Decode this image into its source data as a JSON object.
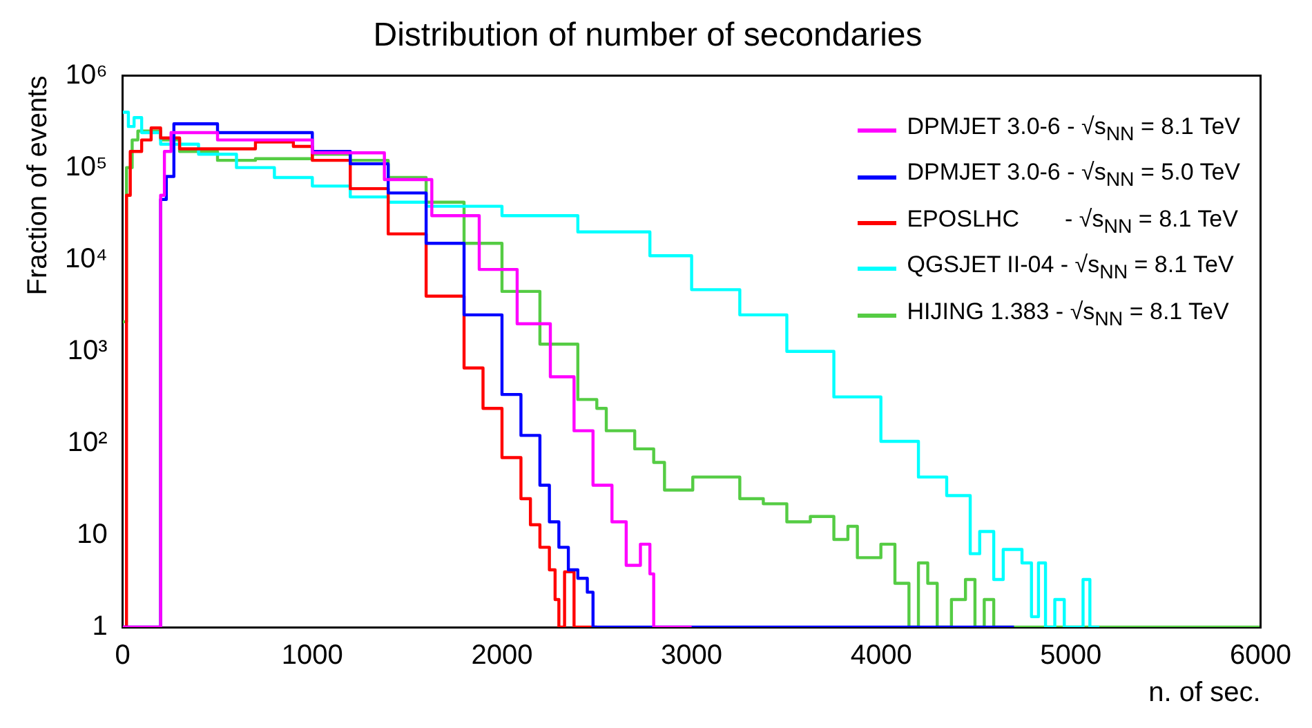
{
  "chart_data": {
    "type": "step",
    "title": "Distribution of number of secondaries",
    "xlabel": "n. of sec.",
    "ylabel": "Fraction of events",
    "log": true,
    "legend": "top right",
    "grid": false,
    "xlim": [
      0,
      6000
    ],
    "xticks": [
      0,
      1000,
      2000,
      3000,
      4000,
      5000,
      6000
    ],
    "ylim": [
      1,
      1000000
    ],
    "yticks": [
      1,
      10,
      {
        "value": 100,
        "label": "10²"
      },
      {
        "value": 1000,
        "label": "10³"
      },
      {
        "value": 10000,
        "label": "10⁴"
      },
      {
        "value": 100000,
        "label": "10⁵"
      },
      {
        "value": 1000000,
        "label": "10⁶"
      }
    ],
    "series": [
      {
        "name": "DPMJET 3.0-6 - √s$_{NN}$ = 8.1 TeV",
        "color": "#ff00ff",
        "x": [
          0,
          200,
          220,
          255,
          500,
          1000,
          1380,
          1630,
          1880,
          2080,
          2255,
          2380,
          2480,
          2580,
          2655,
          2730,
          2780,
          2800,
          3000
        ],
        "values": [
          1,
          50000,
          150000,
          240000,
          200000,
          145000,
          74000,
          30000,
          7800,
          2000,
          530,
          137,
          35,
          14,
          4.7,
          8,
          3.8,
          1,
          1
        ]
      },
      {
        "name": "DPMJET 3.0-6 - √s$_{NN}$ = 5.0 TeV",
        "color": "#0000ff",
        "x": [
          0,
          200,
          230,
          270,
          500,
          1000,
          1200,
          1400,
          1600,
          1800,
          2000,
          2100,
          2200,
          2250,
          2300,
          2350,
          2400,
          2450,
          2480,
          4700
        ],
        "values": [
          1,
          45000,
          80000,
          300000,
          240000,
          150000,
          110000,
          53000,
          15000,
          2500,
          340,
          122,
          35,
          14,
          7.4,
          4.2,
          3.4,
          2.4,
          1,
          1
        ]
      },
      {
        "name": "EPOSLHC       - √s$_{NN}$ = 8.1 TeV",
        "color": "#ff0000",
        "x": [
          0,
          20,
          40,
          100,
          150,
          200,
          300,
          500,
          700,
          900,
          1000,
          1200,
          1400,
          1600,
          1800,
          1900,
          2000,
          2100,
          2150,
          2200,
          2250,
          2280,
          2300,
          2330,
          2380,
          2500
        ],
        "values": [
          1,
          50000,
          150000,
          200000,
          270000,
          210000,
          160000,
          160000,
          190000,
          170000,
          120000,
          59000,
          19000,
          4000,
          660,
          240,
          70,
          25,
          13,
          7.4,
          4.2,
          2,
          1,
          4,
          1,
          1
        ]
      },
      {
        "name": "QGSJET II-04 - √s$_{NN}$ = 8.1 TeV",
        "color": "#00ffff",
        "x": [
          0,
          30,
          60,
          100,
          200,
          400,
          600,
          800,
          1000,
          1200,
          1400,
          1600,
          2000,
          2400,
          2780,
          3000,
          3254,
          3502,
          3750,
          3998,
          4196,
          4345,
          4469,
          4519,
          4593,
          4643,
          4742,
          4792,
          4829,
          4866,
          4915,
          4965,
          5064,
          5100,
          5150
        ],
        "values": [
          400000,
          280000,
          350000,
          240000,
          180000,
          140000,
          100000,
          78000,
          63000,
          48000,
          42000,
          38000,
          30000,
          20000,
          11000,
          4700,
          2500,
          1000,
          320,
          105,
          43,
          27,
          6.3,
          11,
          3.3,
          7,
          5,
          1.3,
          5,
          1,
          2,
          1,
          3.3,
          1,
          1
        ]
      },
      {
        "name": "HIJING 1.383 - √s$_{NN}$ = 8.1 TeV",
        "color": "#55cc44",
        "x": [
          0,
          20,
          50,
          80,
          130,
          200,
          300,
          500,
          700,
          1000,
          1200,
          1400,
          1600,
          1800,
          2000,
          2200,
          2400,
          2500,
          2550,
          2700,
          2800,
          2857,
          3006,
          3254,
          3378,
          3502,
          3626,
          3750,
          3824,
          3874,
          3998,
          4072,
          4146,
          4196,
          4245,
          4295,
          4370,
          4444,
          4494,
          4543,
          4593,
          6000
        ],
        "values": [
          2100,
          100000,
          200000,
          250000,
          250000,
          200000,
          150000,
          120000,
          125000,
          140000,
          120000,
          78000,
          42000,
          15000,
          4500,
          1200,
          300,
          240,
          137,
          87,
          62,
          31,
          43,
          25,
          22,
          14,
          16,
          9,
          12.5,
          5.7,
          8,
          3,
          1,
          5,
          3,
          1,
          2,
          3.3,
          1,
          2,
          1,
          1
        ]
      }
    ]
  }
}
